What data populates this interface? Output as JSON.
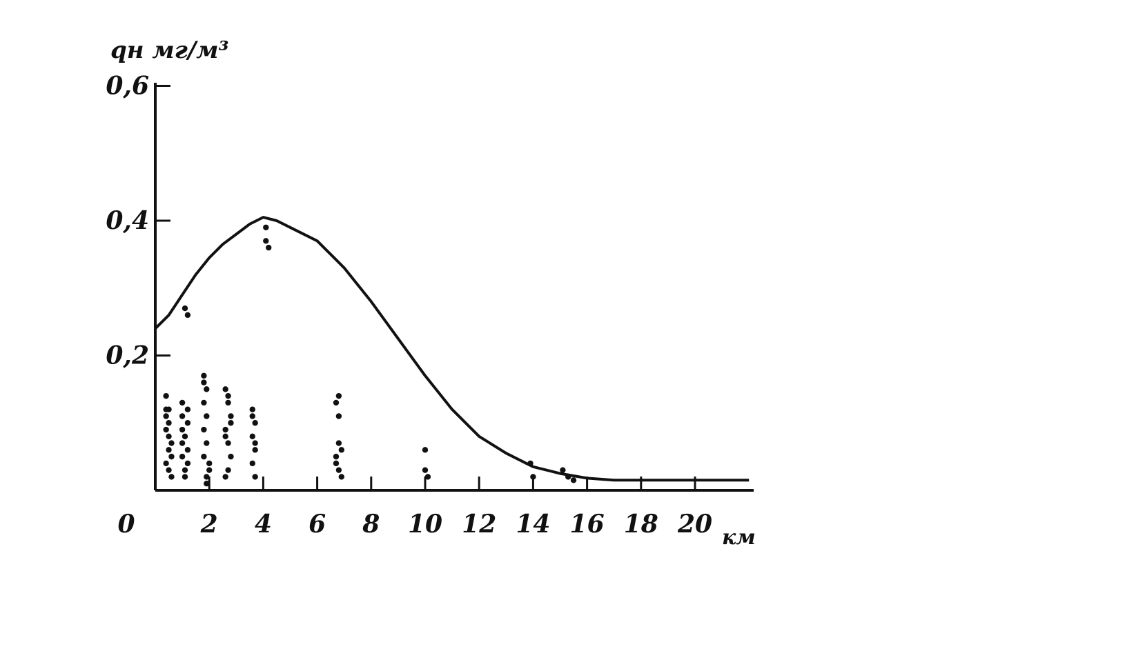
{
  "chart_data": {
    "type": "scatter",
    "title": "",
    "ylabel": "qн мг/м³",
    "xlabel": "км",
    "xlim": [
      0,
      22
    ],
    "ylim": [
      0,
      0.6
    ],
    "grid": false,
    "legend": "none",
    "x_ticks": [
      {
        "value": 0,
        "label": "0"
      },
      {
        "value": 2,
        "label": "2"
      },
      {
        "value": 4,
        "label": "4"
      },
      {
        "value": 6,
        "label": "6"
      },
      {
        "value": 8,
        "label": "8"
      },
      {
        "value": 10,
        "label": "10"
      },
      {
        "value": 12,
        "label": "12"
      },
      {
        "value": 14,
        "label": "14"
      },
      {
        "value": 16,
        "label": "16"
      },
      {
        "value": 18,
        "label": "18"
      },
      {
        "value": 20,
        "label": "20"
      }
    ],
    "y_ticks": [
      {
        "value": 0.2,
        "label": "0,2"
      },
      {
        "value": 0.4,
        "label": "0,4"
      },
      {
        "value": 0.6,
        "label": "0,6"
      }
    ],
    "curve": {
      "x": [
        0,
        0.5,
        1,
        1.5,
        2,
        2.5,
        3,
        3.5,
        4,
        4.5,
        5,
        6,
        7,
        8,
        9,
        10,
        11,
        12,
        13,
        14,
        15,
        16,
        17,
        18,
        19,
        20,
        21,
        22
      ],
      "y": [
        0.24,
        0.26,
        0.29,
        0.32,
        0.345,
        0.365,
        0.38,
        0.395,
        0.405,
        0.4,
        0.39,
        0.37,
        0.33,
        0.28,
        0.225,
        0.17,
        0.12,
        0.08,
        0.055,
        0.035,
        0.025,
        0.018,
        0.015,
        0.015,
        0.015,
        0.015,
        0.015,
        0.015
      ]
    },
    "points": {
      "x": [
        0.4,
        0.4,
        0.5,
        0.4,
        0.5,
        0.5,
        0.6,
        0.4,
        0.5,
        0.6,
        0.5,
        0.6,
        0.4,
        1.0,
        1.0,
        1.0,
        1.1,
        1.2,
        1.0,
        1.2,
        1.1,
        1.2,
        1.0,
        1.1,
        1.2,
        1.8,
        1.9,
        1.8,
        1.9,
        1.8,
        1.9,
        1.8,
        2.0,
        1.9,
        1.8,
        1.9,
        2.0,
        2.6,
        2.7,
        2.8,
        2.6,
        2.7,
        2.8,
        2.7,
        2.6,
        2.7,
        2.8,
        2.6,
        3.6,
        3.7,
        3.6,
        3.7,
        3.6,
        3.7,
        3.6,
        3.7,
        6.7,
        6.8,
        6.8,
        6.9,
        6.7,
        6.8,
        6.9,
        6.7,
        6.8,
        10.0,
        10.0,
        10.1,
        13.9,
        14.0,
        15.1,
        15.3,
        15.5,
        1.1,
        1.2,
        4.1,
        4.2,
        4.1
      ],
      "y": [
        0.14,
        0.12,
        0.1,
        0.09,
        0.08,
        0.06,
        0.05,
        0.04,
        0.03,
        0.02,
        0.12,
        0.07,
        0.11,
        0.13,
        0.11,
        0.09,
        0.08,
        0.06,
        0.05,
        0.04,
        0.03,
        0.1,
        0.07,
        0.02,
        0.12,
        0.17,
        0.15,
        0.13,
        0.11,
        0.09,
        0.07,
        0.05,
        0.03,
        0.02,
        0.16,
        0.01,
        0.04,
        0.15,
        0.13,
        0.11,
        0.09,
        0.07,
        0.05,
        0.03,
        0.02,
        0.14,
        0.1,
        0.08,
        0.12,
        0.1,
        0.08,
        0.06,
        0.04,
        0.02,
        0.11,
        0.07,
        0.13,
        0.11,
        0.07,
        0.06,
        0.04,
        0.03,
        0.02,
        0.05,
        0.14,
        0.06,
        0.03,
        0.02,
        0.04,
        0.02,
        0.03,
        0.02,
        0.015,
        0.27,
        0.26,
        0.37,
        0.36,
        0.39
      ]
    }
  }
}
